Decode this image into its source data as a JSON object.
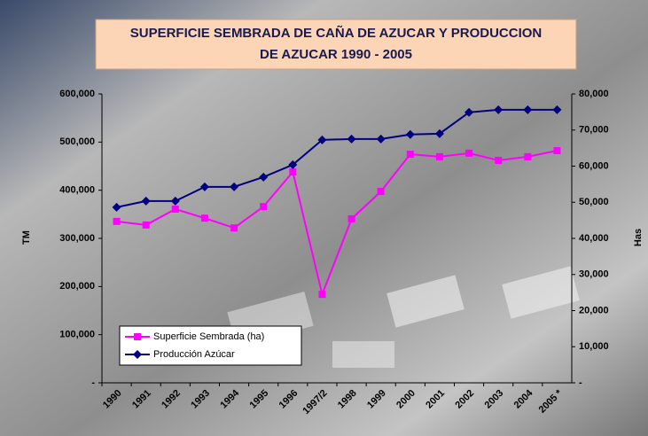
{
  "chart_data": {
    "type": "line",
    "title": [
      "SUPERFICIE SEMBRADA DE CAÑA DE AZUCAR Y PRODUCCION",
      "DE AZUCAR 1990 - 2005"
    ],
    "y_label": "TM",
    "y2_label": "Has",
    "categories": [
      "1990",
      "1991",
      "1992",
      "1993",
      "1994",
      "1995",
      "1996",
      "1997/2",
      "1998",
      "1999",
      "2000",
      "2001",
      "2002",
      "2003",
      "2004",
      "2005 *"
    ],
    "series": [
      {
        "name": "Superficie Sembrada (ha)",
        "color": "#ff00ff",
        "marker": "square",
        "axis": "y2",
        "values": [
          44700,
          43700,
          48100,
          45600,
          42900,
          48800,
          58400,
          24500,
          45400,
          53000,
          63300,
          62600,
          63600,
          61600,
          62600,
          64300
        ]
      },
      {
        "name": "Producción Azúcar",
        "color": "#000080",
        "marker": "diamond",
        "values": [
          364600,
          377500,
          377500,
          407000,
          407000,
          427300,
          453000,
          504600,
          506400,
          506400,
          515700,
          517500,
          561700,
          567200,
          567200,
          567200
        ]
      }
    ],
    "ylim": [
      0,
      600000
    ],
    "yticks": [
      {
        "value": 0,
        "label": "-"
      },
      {
        "value": 100000,
        "label": "100,000"
      },
      {
        "value": 200000,
        "label": "200,000"
      },
      {
        "value": 300000,
        "label": "300,000"
      },
      {
        "value": 400000,
        "label": "400,000"
      },
      {
        "value": 500000,
        "label": "500,000"
      },
      {
        "value": 600000,
        "label": "600,000"
      }
    ],
    "y2lim": [
      0,
      80000
    ],
    "y2ticks": [
      {
        "value": 0,
        "label": "-"
      },
      {
        "value": 10000,
        "label": "10,000"
      },
      {
        "value": 20000,
        "label": "20,000"
      },
      {
        "value": 30000,
        "label": "30,000"
      },
      {
        "value": 40000,
        "label": "40,000"
      },
      {
        "value": 50000,
        "label": "50,000"
      },
      {
        "value": 60000,
        "label": "60,000"
      },
      {
        "value": 70000,
        "label": "70,000"
      },
      {
        "value": 80000,
        "label": "80,000"
      }
    ],
    "legend": "lower-left"
  }
}
